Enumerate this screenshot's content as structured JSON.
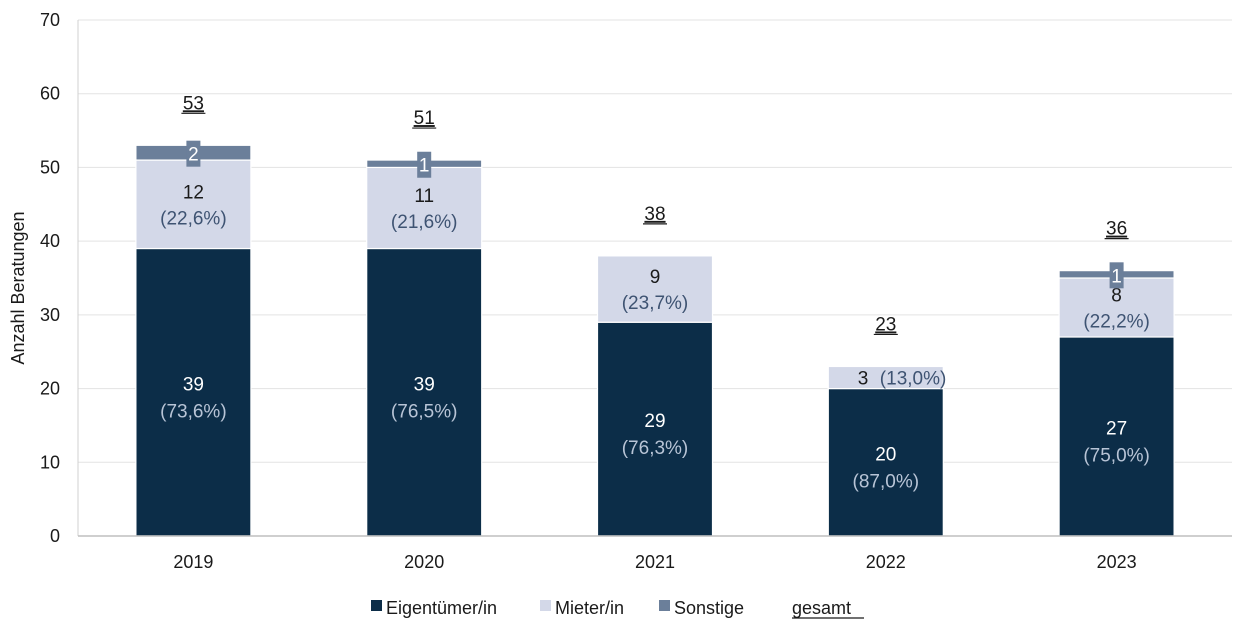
{
  "chart_data": {
    "type": "bar",
    "stacked": true,
    "categories": [
      "2019",
      "2020",
      "2021",
      "2022",
      "2023"
    ],
    "ylabel": "Anzahl Beratungen",
    "ylim": [
      0,
      70
    ],
    "yticks": [
      "0",
      "10",
      "20",
      "30",
      "40",
      "50",
      "60",
      "70"
    ],
    "grid": true,
    "legend_position": "bottom",
    "series": [
      {
        "name": "Eigentümer/in",
        "color": "#0c2d48",
        "values": [
          39,
          39,
          29,
          20,
          27
        ],
        "labels": [
          "39",
          "39",
          "29",
          "20",
          "27"
        ],
        "pct_labels": [
          "(73,6%)",
          "(76,5%)",
          "(76,3%)",
          "(87,0%)",
          "(75,0%)"
        ]
      },
      {
        "name": "Mieter/in",
        "color": "#d3d8e8",
        "values": [
          12,
          11,
          9,
          3,
          8
        ],
        "labels": [
          "12",
          "11",
          "9",
          "3",
          "8"
        ],
        "pct_labels": [
          "(22,6%)",
          "(21,6%)",
          "(23,7%)",
          "(13,0%)",
          "(22,2%)"
        ]
      },
      {
        "name": "Sonstige",
        "color": "#6b7f9a",
        "values": [
          2,
          1,
          0,
          0,
          1
        ],
        "labels": [
          "2",
          "1",
          "",
          "",
          "1"
        ]
      }
    ],
    "totals_name": "gesamt",
    "totals": [
      53,
      51,
      38,
      23,
      36
    ],
    "total_labels": [
      "53",
      "51",
      "38",
      "23",
      "36"
    ]
  }
}
